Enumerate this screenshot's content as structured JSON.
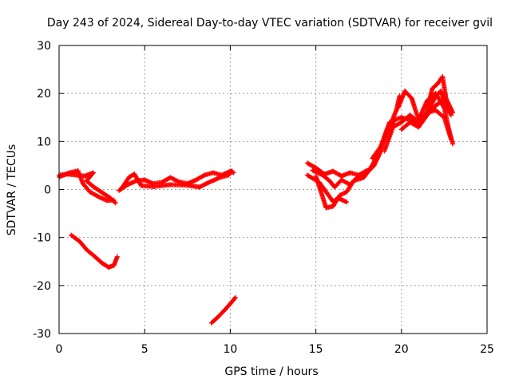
{
  "chart_data": {
    "type": "scatter",
    "title": "Day 243 of 2024, Sidereal Day-to-day VTEC variation (SDTVAR) for receiver gvil",
    "xlabel": "GPS time / hours",
    "ylabel": "SDTVAR / TECUs",
    "xlim": [
      0,
      25
    ],
    "ylim": [
      -30,
      30
    ],
    "xticks": [
      "0",
      "5",
      "10",
      "15",
      "20",
      "25"
    ],
    "yticks": [
      "-30",
      "-20",
      "-10",
      "0",
      "10",
      "20",
      "30"
    ],
    "grid": true,
    "marker_color": "#ff0000",
    "series": [
      {
        "segments": [
          [
            [
              0.0,
              3.0
            ],
            [
              0.5,
              3.2
            ],
            [
              1.0,
              3.0
            ],
            [
              1.5,
              2.8
            ],
            [
              2.0,
              3.5
            ],
            [
              1.6,
              1.8
            ],
            [
              2.0,
              0.6
            ],
            [
              2.5,
              -0.6
            ],
            [
              3.0,
              -1.8
            ],
            [
              3.3,
              -2.8
            ]
          ],
          [
            [
              0.0,
              2.6
            ],
            [
              0.6,
              3.5
            ],
            [
              1.1,
              3.9
            ],
            [
              1.4,
              1.2
            ],
            [
              1.8,
              -0.5
            ],
            [
              2.3,
              -1.5
            ],
            [
              2.8,
              -2.3
            ],
            [
              3.2,
              -2.2
            ]
          ],
          [
            [
              3.5,
              -0.2
            ],
            [
              4.0,
              1.0
            ],
            [
              4.5,
              1.8
            ],
            [
              5.0,
              2.0
            ],
            [
              5.5,
              1.2
            ],
            [
              6.0,
              1.5
            ],
            [
              6.5,
              2.5
            ],
            [
              7.0,
              1.6
            ],
            [
              7.5,
              1.2
            ],
            [
              8.0,
              2.0
            ],
            [
              8.5,
              3.0
            ],
            [
              9.0,
              3.5
            ],
            [
              9.5,
              3.0
            ],
            [
              10.0,
              3.8
            ],
            [
              10.2,
              3.5
            ]
          ],
          [
            [
              3.6,
              0.0
            ],
            [
              4.1,
              2.6
            ],
            [
              4.4,
              3.2
            ],
            [
              4.8,
              0.8
            ],
            [
              5.5,
              0.6
            ],
            [
              6.5,
              1.0
            ],
            [
              7.5,
              0.9
            ],
            [
              8.2,
              0.5
            ],
            [
              8.7,
              1.4
            ],
            [
              9.4,
              2.5
            ],
            [
              9.9,
              3.0
            ],
            [
              10.1,
              3.9
            ]
          ],
          [
            [
              0.7,
              -9.5
            ],
            [
              1.2,
              -10.8
            ],
            [
              1.6,
              -12.5
            ],
            [
              2.1,
              -14.0
            ],
            [
              2.5,
              -15.3
            ],
            [
              2.9,
              -16.2
            ],
            [
              3.2,
              -15.8
            ],
            [
              3.4,
              -14.0
            ]
          ],
          [
            [
              8.9,
              -27.8
            ],
            [
              9.3,
              -26.5
            ],
            [
              9.7,
              -25.0
            ],
            [
              10.0,
              -23.8
            ],
            [
              10.3,
              -22.5
            ]
          ],
          [
            [
              14.5,
              5.5
            ],
            [
              15.0,
              4.5
            ],
            [
              15.5,
              3.2
            ],
            [
              16.0,
              3.8
            ],
            [
              16.5,
              2.8
            ],
            [
              17.0,
              3.5
            ],
            [
              17.5,
              3.0
            ],
            [
              18.0,
              4.0
            ]
          ],
          [
            [
              14.5,
              3.0
            ],
            [
              15.2,
              1.5
            ],
            [
              15.6,
              -0.5
            ],
            [
              16.0,
              -2.5
            ],
            [
              16.3,
              -1.8
            ],
            [
              16.8,
              -2.6
            ]
          ],
          [
            [
              14.8,
              4.0
            ],
            [
              15.4,
              3.0
            ],
            [
              15.8,
              1.8
            ],
            [
              16.1,
              0.5
            ],
            [
              16.5,
              2.0
            ],
            [
              17.0,
              1.0
            ],
            [
              17.5,
              2.8
            ],
            [
              18.0,
              3.5
            ],
            [
              18.4,
              5.0
            ],
            [
              18.8,
              8.0
            ],
            [
              19.0,
              11.0
            ],
            [
              19.3,
              14.0
            ]
          ],
          [
            [
              15.0,
              2.8
            ],
            [
              15.6,
              -3.8
            ],
            [
              16.0,
              -3.5
            ],
            [
              16.4,
              -1.2
            ],
            [
              16.8,
              -0.5
            ],
            [
              17.2,
              1.8
            ],
            [
              17.8,
              2.5
            ],
            [
              18.2,
              4.5
            ],
            [
              18.6,
              7.0
            ],
            [
              18.9,
              10.0
            ],
            [
              19.3,
              13.0
            ],
            [
              19.7,
              16.5
            ],
            [
              19.9,
              19.5
            ]
          ],
          [
            [
              18.3,
              6.5
            ],
            [
              18.8,
              9.0
            ],
            [
              19.2,
              12.0
            ],
            [
              19.6,
              14.5
            ],
            [
              20.0,
              15.0
            ],
            [
              20.5,
              14.5
            ],
            [
              21.0,
              13.5
            ],
            [
              21.5,
              15.5
            ],
            [
              22.0,
              17.5
            ],
            [
              22.4,
              18.5
            ],
            [
              22.8,
              17.0
            ]
          ],
          [
            [
              19.0,
              8.0
            ],
            [
              19.5,
              13.0
            ],
            [
              20.0,
              14.0
            ],
            [
              20.5,
              15.5
            ],
            [
              21.0,
              14.0
            ],
            [
              21.5,
              16.0
            ],
            [
              22.0,
              16.5
            ],
            [
              22.5,
              15.0
            ],
            [
              22.9,
              10.5
            ]
          ],
          [
            [
              19.8,
              17.0
            ],
            [
              20.2,
              20.5
            ],
            [
              20.6,
              19.0
            ],
            [
              21.0,
              14.5
            ],
            [
              21.5,
              18.5
            ],
            [
              22.0,
              20.0
            ],
            [
              22.5,
              17.0
            ],
            [
              22.8,
              12.0
            ],
            [
              23.0,
              9.5
            ]
          ],
          [
            [
              20.0,
              12.5
            ],
            [
              20.5,
              14.0
            ],
            [
              21.0,
              13.0
            ],
            [
              21.4,
              15.0
            ],
            [
              21.8,
              21.0
            ],
            [
              22.1,
              22.0
            ],
            [
              22.4,
              23.5
            ],
            [
              22.6,
              19.0
            ],
            [
              23.0,
              16.0
            ]
          ],
          [
            [
              21.6,
              16.5
            ],
            [
              22.0,
              19.5
            ],
            [
              22.3,
              20.5
            ],
            [
              22.6,
              17.5
            ],
            [
              22.9,
              15.5
            ]
          ]
        ]
      }
    ]
  }
}
